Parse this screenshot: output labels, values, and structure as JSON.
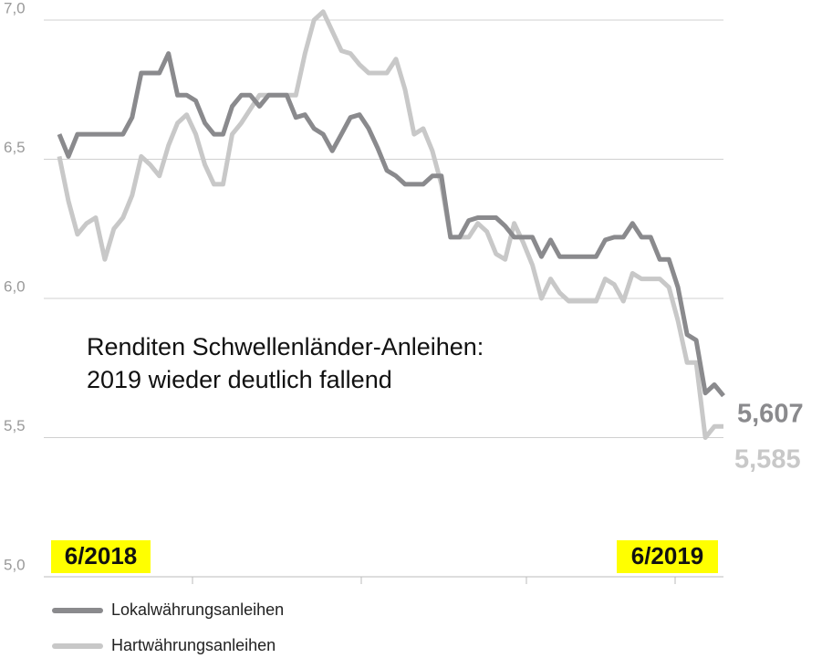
{
  "chart_data": {
    "type": "line",
    "annotation": [
      "Renditen Schwellenländer-Anleihen:",
      "2019 wieder deutlich fallend"
    ],
    "date_markers": [
      "6/2018",
      "6/2019"
    ],
    "date_marker_color": "#ffff00",
    "ylim": [
      5,
      7.05
    ],
    "yticks": [
      {
        "value": 5,
        "label": "5,0"
      },
      {
        "value": 5.5,
        "label": "5,5"
      },
      {
        "value": 6,
        "label": "6,0"
      },
      {
        "value": 6.5,
        "label": "6,5"
      },
      {
        "value": 7,
        "label": "7,0"
      }
    ],
    "grid": true,
    "series": [
      {
        "name": "Lokalwährungsanleihen",
        "color": "#8a8a8d",
        "end_label": "5,607",
        "values": [
          6.59,
          6.51,
          6.59,
          6.59,
          6.59,
          6.59,
          6.59,
          6.59,
          6.65,
          6.81,
          6.81,
          6.81,
          6.88,
          6.73,
          6.73,
          6.71,
          6.63,
          6.59,
          6.59,
          6.69,
          6.73,
          6.73,
          6.69,
          6.73,
          6.73,
          6.73,
          6.65,
          6.66,
          6.61,
          6.59,
          6.53,
          6.59,
          6.65,
          6.66,
          6.61,
          6.54,
          6.46,
          6.44,
          6.41,
          6.41,
          6.41,
          6.44,
          6.44,
          6.22,
          6.22,
          6.28,
          6.29,
          6.29,
          6.29,
          6.26,
          6.22,
          6.22,
          6.22,
          6.15,
          6.21,
          6.15,
          6.15,
          6.15,
          6.15,
          6.15,
          6.21,
          6.22,
          6.22,
          6.27,
          6.22,
          6.22,
          6.14,
          6.14,
          6.04,
          5.87,
          5.85,
          5.66,
          5.69,
          5.65
        ]
      },
      {
        "name": "Hartwährungsanleihen",
        "color": "#c8c8c8",
        "end_label": "5,585",
        "values": [
          6.51,
          6.35,
          6.23,
          6.27,
          6.29,
          6.14,
          6.25,
          6.29,
          6.37,
          6.51,
          6.48,
          6.44,
          6.55,
          6.63,
          6.66,
          6.59,
          6.48,
          6.41,
          6.41,
          6.59,
          6.63,
          6.68,
          6.73,
          6.73,
          6.73,
          6.73,
          6.73,
          6.88,
          7.0,
          7.03,
          6.96,
          6.89,
          6.88,
          6.84,
          6.81,
          6.81,
          6.81,
          6.86,
          6.75,
          6.59,
          6.61,
          6.53,
          6.41,
          6.22,
          6.22,
          6.22,
          6.27,
          6.24,
          6.16,
          6.14,
          6.27,
          6.2,
          6.12,
          6.0,
          6.07,
          6.02,
          5.99,
          5.99,
          5.99,
          5.99,
          6.07,
          6.05,
          5.99,
          6.09,
          6.07,
          6.07,
          6.07,
          6.04,
          5.92,
          5.77,
          5.77,
          5.5,
          5.54,
          5.54
        ]
      }
    ]
  }
}
